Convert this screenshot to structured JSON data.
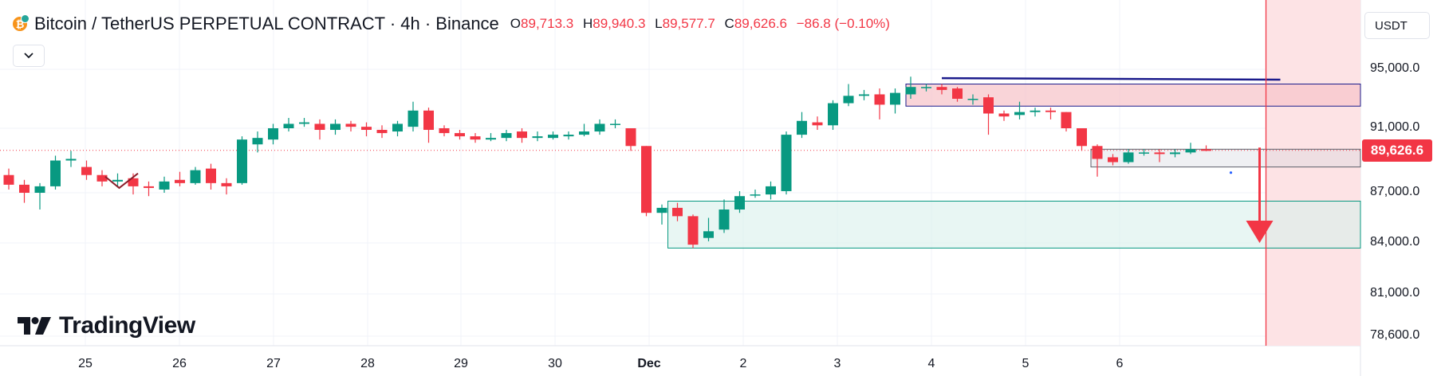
{
  "header": {
    "symbol": "Bitcoin / TetherUS PERPETUAL CONTRACT · 4h · Binance",
    "open_label": "O",
    "open": "89,713.3",
    "high_label": "H",
    "high": "89,940.3",
    "low_label": "L",
    "low": "89,577.7",
    "close_label": "C",
    "close": "89,626.6",
    "change": "−86.8 (−0.10%)",
    "coin_icon": "bitcoin-icon",
    "collapse_icon": "chevron-down-icon"
  },
  "currency_button": "USDT",
  "watermark": "TradingView",
  "last_price_tag": "89,626.6",
  "colors": {
    "up": "#089981",
    "down": "#f23645",
    "supply_zone": "#f7c6cb",
    "demand_zone": "#d8f0eb",
    "level_line": "#1c1c8c"
  },
  "chart_data": {
    "type": "candlestick",
    "ylabels": [
      "95,000.0",
      "91,000.0",
      "87,000.0",
      "84,000.0",
      "81,000.0",
      "78,600.0"
    ],
    "yticks": [
      95000,
      91000,
      87000,
      84000,
      81000,
      78600
    ],
    "xlabels": [
      "25",
      "26",
      "27",
      "28",
      "29",
      "30",
      "Dec",
      "2",
      "3",
      "4",
      "5",
      "6"
    ],
    "x_major": "Dec",
    "current_price": 89626.6,
    "candles": [
      [
        88.1,
        87.5,
        88.5,
        87.2
      ],
      [
        87.5,
        87.0,
        87.8,
        86.4
      ],
      [
        87.0,
        87.4,
        87.6,
        86.0
      ],
      [
        87.4,
        89.0,
        89.3,
        87.2
      ],
      [
        89.0,
        89.1,
        89.6,
        88.6
      ],
      [
        88.6,
        88.1,
        89.0,
        87.8
      ],
      [
        88.1,
        87.7,
        88.4,
        87.4
      ],
      [
        87.7,
        87.8,
        88.2,
        87.4
      ],
      [
        87.9,
        87.4,
        88.2,
        86.9
      ],
      [
        87.4,
        87.3,
        87.7,
        86.8
      ],
      [
        87.2,
        87.7,
        88.0,
        87.0
      ],
      [
        87.8,
        87.6,
        88.3,
        87.4
      ],
      [
        87.6,
        88.4,
        88.6,
        87.5
      ],
      [
        88.5,
        87.6,
        88.8,
        87.2
      ],
      [
        87.6,
        87.4,
        87.9,
        86.9
      ],
      [
        87.6,
        90.3,
        90.5,
        87.5
      ],
      [
        90.0,
        90.4,
        90.8,
        89.5
      ],
      [
        90.3,
        91.0,
        91.3,
        90.0
      ],
      [
        91.0,
        91.3,
        91.7,
        90.8
      ],
      [
        91.3,
        91.4,
        91.7,
        91.1
      ],
      [
        91.3,
        90.9,
        91.6,
        90.3
      ],
      [
        90.9,
        91.3,
        91.6,
        90.6
      ],
      [
        91.3,
        91.1,
        91.5,
        90.8
      ],
      [
        91.1,
        90.9,
        91.4,
        90.5
      ],
      [
        90.9,
        90.7,
        91.2,
        90.4
      ],
      [
        90.8,
        91.3,
        91.5,
        90.5
      ],
      [
        91.1,
        92.2,
        92.8,
        90.8
      ],
      [
        92.2,
        90.9,
        92.4,
        90.1
      ],
      [
        91.0,
        90.7,
        91.2,
        90.5
      ],
      [
        90.7,
        90.5,
        90.9,
        90.3
      ],
      [
        90.5,
        90.3,
        90.7,
        90.1
      ],
      [
        90.3,
        90.4,
        90.7,
        90.2
      ],
      [
        90.4,
        90.7,
        90.9,
        90.2
      ],
      [
        90.8,
        90.4,
        91.0,
        90.1
      ],
      [
        90.4,
        90.5,
        90.8,
        90.2
      ],
      [
        90.4,
        90.6,
        90.8,
        90.3
      ],
      [
        90.5,
        90.6,
        90.8,
        90.3
      ],
      [
        90.6,
        90.8,
        91.3,
        90.5
      ],
      [
        90.8,
        91.3,
        91.6,
        90.6
      ],
      [
        91.3,
        91.3,
        91.6,
        91.0
      ],
      [
        91.0,
        89.9,
        91.0,
        89.6
      ],
      [
        89.9,
        85.8,
        89.9,
        85.6
      ],
      [
        85.8,
        86.1,
        86.3,
        85.1
      ],
      [
        86.1,
        85.6,
        86.4,
        85.3
      ],
      [
        85.6,
        83.9,
        85.7,
        83.7
      ],
      [
        84.3,
        84.7,
        85.5,
        84.1
      ],
      [
        84.8,
        86.0,
        86.6,
        84.6
      ],
      [
        86.0,
        86.8,
        87.1,
        85.8
      ],
      [
        86.9,
        86.9,
        87.2,
        86.7
      ],
      [
        86.9,
        87.4,
        87.7,
        86.6
      ],
      [
        87.1,
        90.6,
        90.8,
        86.9
      ],
      [
        90.6,
        91.5,
        92.1,
        90.4
      ],
      [
        91.4,
        91.2,
        91.8,
        90.9
      ],
      [
        91.2,
        92.7,
        92.9,
        90.9
      ],
      [
        92.7,
        93.2,
        94.0,
        92.5
      ],
      [
        93.2,
        93.3,
        93.6,
        92.9
      ],
      [
        93.3,
        92.6,
        93.7,
        91.6
      ],
      [
        92.6,
        93.4,
        93.7,
        92.0
      ],
      [
        93.3,
        93.8,
        94.5,
        93.0
      ],
      [
        93.8,
        93.8,
        94.0,
        93.5
      ],
      [
        93.8,
        93.6,
        94.0,
        93.3
      ],
      [
        93.7,
        93.0,
        93.8,
        92.8
      ],
      [
        93.0,
        93.0,
        93.3,
        92.6
      ],
      [
        93.1,
        92.0,
        93.3,
        90.6
      ],
      [
        92.0,
        91.8,
        92.2,
        91.5
      ],
      [
        91.9,
        92.1,
        92.8,
        91.6
      ],
      [
        92.1,
        92.2,
        92.4,
        91.8
      ],
      [
        92.2,
        92.1,
        92.4,
        91.6
      ],
      [
        92.1,
        91.0,
        92.1,
        90.8
      ],
      [
        91.0,
        89.9,
        91.0,
        89.6
      ],
      [
        89.9,
        89.1,
        90.0,
        88.0
      ],
      [
        89.2,
        88.9,
        89.4,
        88.7
      ],
      [
        88.9,
        89.5,
        89.7,
        88.8
      ],
      [
        89.5,
        89.5,
        89.7,
        89.3
      ],
      [
        89.5,
        89.4,
        89.7,
        88.9
      ],
      [
        89.4,
        89.5,
        89.7,
        89.2
      ],
      [
        89.5,
        89.7,
        90.1,
        89.4
      ],
      [
        89.7,
        89.6,
        89.94,
        89.58
      ]
    ],
    "supply_zone": {
      "from_index": 58,
      "top": 94.0,
      "bottom": 92.5
    },
    "demand_zone": {
      "from_index": 43,
      "top": 86.5,
      "bottom": 83.7
    },
    "consolidation_box": {
      "from_index": 70,
      "to_index": 79,
      "top": 89.7,
      "bottom": 88.6
    },
    "resistance_line": {
      "from_index": 60,
      "to_index": 79,
      "value_from": 94.4,
      "value_to": 94.3
    },
    "forecast_arrow": {
      "at_index": 79,
      "from": 89.8,
      "to": 84.0
    },
    "vertical_marker_index": 79
  }
}
